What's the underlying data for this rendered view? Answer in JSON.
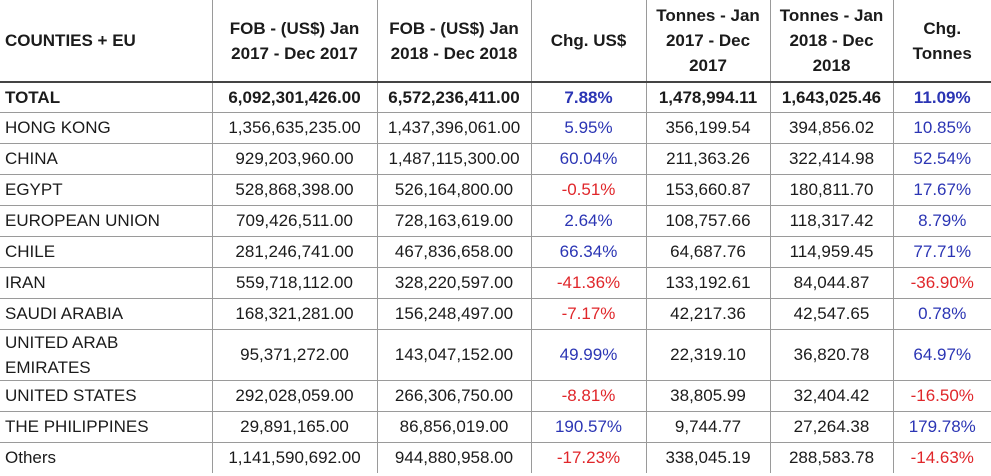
{
  "headers": {
    "country": "COUNTIES + EU",
    "fob2017": "FOB - (US$) Jan 2017 - Dec 2017",
    "fob2018": "FOB - (US$) Jan 2018 - Dec 2018",
    "chg_usd": "Chg. US$",
    "tonnes2017": "Tonnes - Jan 2017 - Dec 2017",
    "tonnes2018": "Tonnes - Jan 2018 - Dec 2018",
    "chg_tonnes": "Chg. Tonnes"
  },
  "rows": [
    {
      "country": "TOTAL",
      "fob2017": "6,092,301,426.00",
      "fob2018": "6,572,236,411.00",
      "chg_usd": "7.88%",
      "tonnes2017": "1,478,994.11",
      "tonnes2018": "1,643,025.46",
      "chg_tonnes": "11.09%"
    },
    {
      "country": "HONG KONG",
      "fob2017": "1,356,635,235.00",
      "fob2018": "1,437,396,061.00",
      "chg_usd": "5.95%",
      "tonnes2017": "356,199.54",
      "tonnes2018": "394,856.02",
      "chg_tonnes": "10.85%"
    },
    {
      "country": "CHINA",
      "fob2017": "929,203,960.00",
      "fob2018": "1,487,115,300.00",
      "chg_usd": "60.04%",
      "tonnes2017": "211,363.26",
      "tonnes2018": "322,414.98",
      "chg_tonnes": "52.54%"
    },
    {
      "country": "EGYPT",
      "fob2017": "528,868,398.00",
      "fob2018": "526,164,800.00",
      "chg_usd": "-0.51%",
      "tonnes2017": "153,660.87",
      "tonnes2018": "180,811.70",
      "chg_tonnes": "17.67%"
    },
    {
      "country": "EUROPEAN UNION",
      "fob2017": "709,426,511.00",
      "fob2018": "728,163,619.00",
      "chg_usd": "2.64%",
      "tonnes2017": "108,757.66",
      "tonnes2018": "118,317.42",
      "chg_tonnes": "8.79%"
    },
    {
      "country": "CHILE",
      "fob2017": "281,246,741.00",
      "fob2018": "467,836,658.00",
      "chg_usd": "66.34%",
      "tonnes2017": "64,687.76",
      "tonnes2018": "114,959.45",
      "chg_tonnes": "77.71%"
    },
    {
      "country": "IRAN",
      "fob2017": "559,718,112.00",
      "fob2018": "328,220,597.00",
      "chg_usd": "-41.36%",
      "tonnes2017": "133,192.61",
      "tonnes2018": "84,044.87",
      "chg_tonnes": "-36.90%"
    },
    {
      "country": "SAUDI ARABIA",
      "fob2017": "168,321,281.00",
      "fob2018": "156,248,497.00",
      "chg_usd": "-7.17%",
      "tonnes2017": "42,217.36",
      "tonnes2018": "42,547.65",
      "chg_tonnes": "0.78%"
    },
    {
      "country": "UNITED ARAB EMIRATES",
      "fob2017": "95,371,272.00",
      "fob2018": "143,047,152.00",
      "chg_usd": "49.99%",
      "tonnes2017": "22,319.10",
      "tonnes2018": "36,820.78",
      "chg_tonnes": "64.97%"
    },
    {
      "country": "UNITED STATES",
      "fob2017": "292,028,059.00",
      "fob2018": "266,306,750.00",
      "chg_usd": "-8.81%",
      "tonnes2017": "38,805.99",
      "tonnes2018": "32,404.42",
      "chg_tonnes": "-16.50%"
    },
    {
      "country": "THE PHILIPPINES",
      "fob2017": "29,891,165.00",
      "fob2018": "86,856,019.00",
      "chg_usd": "190.57%",
      "tonnes2017": "9,744.77",
      "tonnes2018": "27,264.38",
      "chg_tonnes": "179.78%"
    },
    {
      "country": "Others",
      "fob2017": "1,141,590,692.00",
      "fob2018": "944,880,958.00",
      "chg_usd": "-17.23%",
      "tonnes2017": "338,045.19",
      "tonnes2018": "288,583.78",
      "chg_tonnes": "-14.63%"
    }
  ],
  "colors": {
    "positive": "#2b35b4",
    "negative": "#e0262a"
  }
}
